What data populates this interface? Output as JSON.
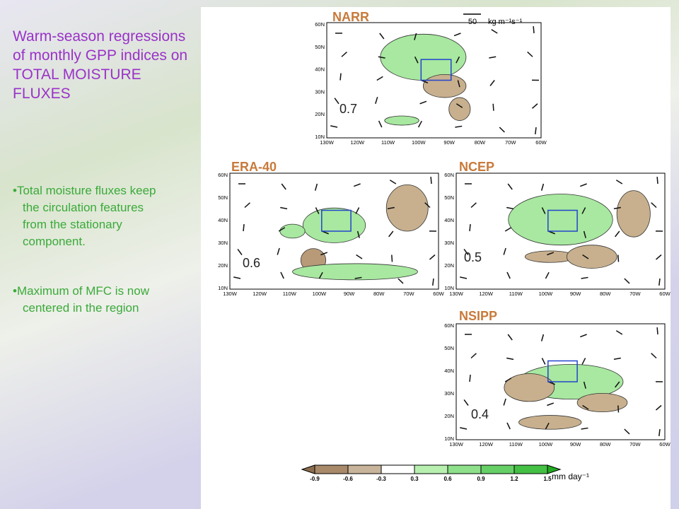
{
  "title_lines": [
    "Warm-season regressions",
    "of monthly GPP indices on",
    "TOTAL MOISTURE",
    "FLUXES"
  ],
  "bullets": [
    {
      "lines": [
        "•Total moisture fluxes keep",
        "the circulation features",
        "from the stationary",
        "component."
      ]
    },
    {
      "lines": [
        "•Maximum of MFC is now",
        "centered in the region"
      ]
    }
  ],
  "vector_key": {
    "value": "50",
    "unit": "kg m⁻¹s⁻¹"
  },
  "lat_ticks": [
    "60N",
    "50N",
    "40N",
    "30N",
    "20N",
    "10N"
  ],
  "lon_ticks": [
    "130W",
    "120W",
    "110W",
    "100W",
    "90W",
    "80W",
    "70W",
    "60W"
  ],
  "panels": [
    {
      "name": "NARR",
      "correlation": "0.7"
    },
    {
      "name": "ERA-40",
      "correlation": "0.6"
    },
    {
      "name": "NCEP",
      "correlation": "0.5"
    },
    {
      "name": "NSIPP",
      "correlation": "0.4"
    }
  ],
  "colorbar": {
    "ticks": [
      "-0.9",
      "-0.6",
      "-0.3",
      "0.3",
      "0.6",
      "0.9",
      "1.2",
      "1.5"
    ],
    "unit": "mm day⁻¹"
  }
}
